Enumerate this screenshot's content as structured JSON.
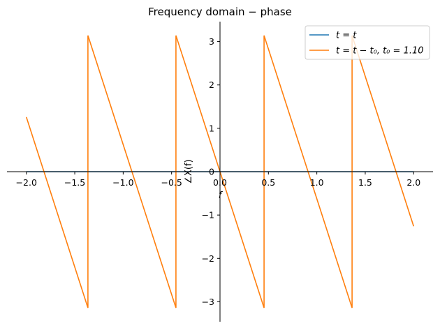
{
  "chart_data": {
    "type": "line",
    "title": "Frequency domain − phase",
    "x_label": "f",
    "y_label": "∠X(f)",
    "xlim": [
      -2.2,
      2.2
    ],
    "ylim": [
      -3.46,
      3.46
    ],
    "xticks": [
      {
        "value": -2,
        "label": "−2.0"
      },
      {
        "value": -1.5,
        "label": "−1.5"
      },
      {
        "value": -1,
        "label": "−1.0"
      },
      {
        "value": -0.5,
        "label": "−0.5"
      },
      {
        "value": 0,
        "label": "0.0"
      },
      {
        "value": 0.5,
        "label": "0.5"
      },
      {
        "value": 1,
        "label": "1.0"
      },
      {
        "value": 1.5,
        "label": "1.5"
      },
      {
        "value": 2,
        "label": "2.0"
      }
    ],
    "yticks": [
      {
        "value": -3,
        "label": "−3"
      },
      {
        "value": -2,
        "label": "−2"
      },
      {
        "value": -1,
        "label": "−1"
      },
      0,
      1,
      2,
      3
    ],
    "legend": "upper right",
    "series": [
      {
        "name": "t = t",
        "color": "#1f77b4",
        "x": [
          -2,
          2
        ],
        "values": [
          0,
          0
        ]
      },
      {
        "name": "t = t − t₀, t₀ = 1.10",
        "color": "#ff7f0e",
        "x": [
          -2,
          -1.364,
          -1.364,
          -0.455,
          -0.455,
          0.455,
          0.455,
          1.364,
          1.364,
          2
        ],
        "values": [
          1.26,
          -3.14,
          3.14,
          -3.14,
          3.14,
          -3.14,
          3.14,
          -3.14,
          3.14,
          -1.26
        ]
      }
    ]
  }
}
